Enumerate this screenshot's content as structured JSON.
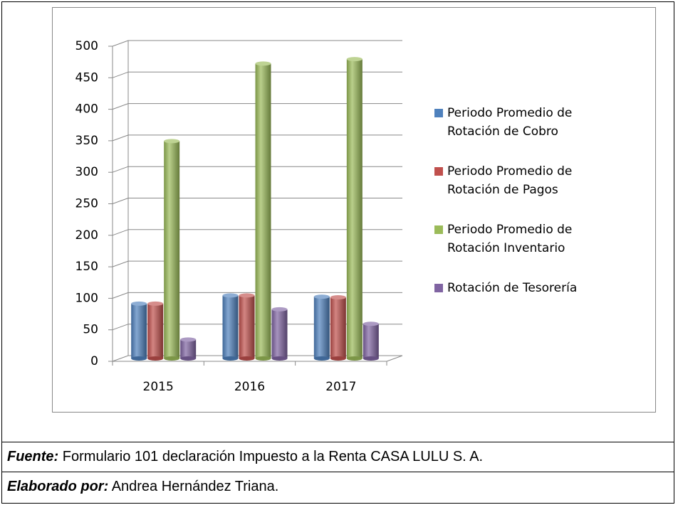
{
  "chart_data": {
    "type": "bar",
    "categories": [
      "2015",
      "2016",
      "2017"
    ],
    "series": [
      {
        "name": "Periodo Promedio de Rotación de Cobro",
        "color": "#4f81bd",
        "values": [
          87,
          100,
          98
        ]
      },
      {
        "name": "Periodo Promedio de Rotación de Pagos",
        "color": "#c0504d",
        "values": [
          87,
          100,
          97
        ]
      },
      {
        "name": "Periodo Promedio de Rotación Inventario",
        "color": "#9bbb59",
        "values": [
          345,
          468,
          475
        ]
      },
      {
        "name": "Rotación de Tesorería",
        "color": "#8064a2",
        "values": [
          30,
          78,
          55
        ]
      }
    ],
    "ylim": [
      0,
      500
    ],
    "yticks": [
      0,
      50,
      100,
      150,
      200,
      250,
      300,
      350,
      400,
      450,
      500
    ],
    "grid": true,
    "legend": "right"
  },
  "footer": {
    "source": {
      "label": "Fuente:",
      "text": "Formulario 101 declaración Impuesto a la Renta CASA LULU S. A."
    },
    "author": {
      "label": "Elaborado por:",
      "text": "Andrea Hernández Triana."
    }
  }
}
